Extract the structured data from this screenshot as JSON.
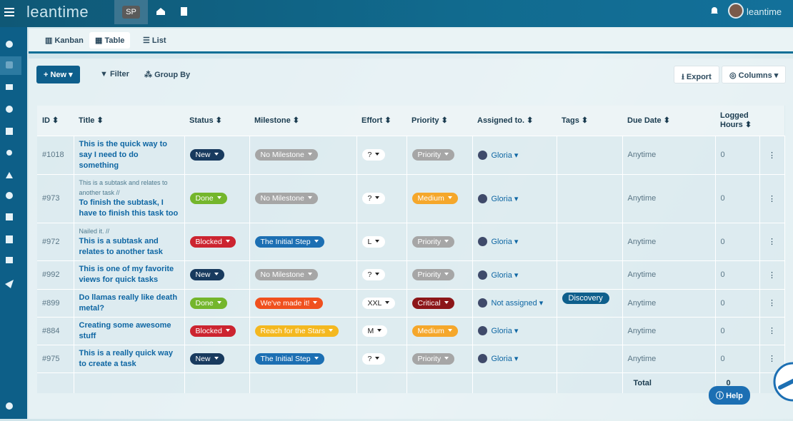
{
  "header": {
    "logo": "leantime",
    "project": "SP",
    "user": "leantime"
  },
  "tabs": [
    "Kanban",
    "Table",
    "List"
  ],
  "toolbar": {
    "new": "New",
    "filter": "Filter",
    "group_by": "Group By",
    "export": "Export",
    "columns": "Columns"
  },
  "table": {
    "columns": [
      "ID",
      "Title",
      "Status",
      "Milestone",
      "Effort",
      "Priority",
      "Assigned to.",
      "Tags",
      "Due Date",
      "Logged Hours"
    ],
    "rows": [
      {
        "id": "#1018",
        "title": "This is the quick way to say I need to do something",
        "status": "New",
        "milestone": "No Milestone",
        "effort": "?",
        "priority": "Priority",
        "assigned": "Gloria",
        "due": "Anytime",
        "hours": 0
      },
      {
        "id": "#973",
        "note": "This is a subtask and relates to another task //",
        "title": "To finish the subtask, I have to finish this task too",
        "status": "Done",
        "milestone": "No Milestone",
        "effort": "?",
        "priority": "Medium",
        "assigned": "Gloria",
        "due": "Anytime",
        "hours": 0
      },
      {
        "id": "#972",
        "note": "Nailed it. //",
        "title": "This is a subtask and relates to another task",
        "status": "Blocked",
        "milestone": "The Initial Step",
        "effort": "L",
        "priority": "Priority",
        "assigned": "Gloria",
        "due": "Anytime",
        "hours": 0
      },
      {
        "id": "#992",
        "title": "This is one of my favorite views for quick tasks",
        "status": "New",
        "milestone": "No Milestone",
        "effort": "?",
        "priority": "Priority",
        "assigned": "Gloria",
        "due": "Anytime",
        "hours": 0
      },
      {
        "id": "#899",
        "title": "Do llamas really like death metal?",
        "status": "Done",
        "milestone": "We've made it!",
        "effort": "XXL",
        "priority": "Critical",
        "assigned": "Not assigned",
        "tags": "Discovery",
        "due": "Anytime",
        "hours": 0
      },
      {
        "id": "#884",
        "title": "Creating some awesome stuff",
        "status": "Blocked",
        "milestone": "Reach for the Stars",
        "effort": "M",
        "priority": "Medium",
        "assigned": "Gloria",
        "due": "Anytime",
        "hours": 0
      },
      {
        "id": "#975",
        "title": "This is a really quick way to create a task",
        "status": "New",
        "milestone": "The Initial Step",
        "effort": "?",
        "priority": "Priority",
        "assigned": "Gloria",
        "due": "Anytime",
        "hours": 0
      }
    ],
    "total_label": "Total",
    "total": 0
  },
  "help": "Help"
}
